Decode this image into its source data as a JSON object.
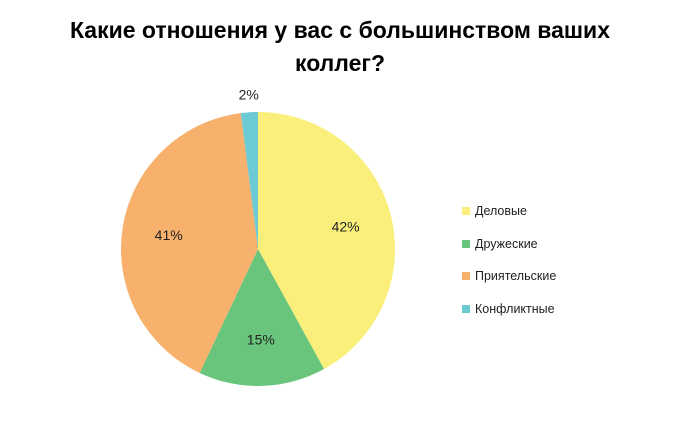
{
  "chart_data": {
    "type": "pie",
    "title": "Какие отношения у вас с большинством ваших коллег?",
    "categories": [
      "Деловые",
      "Дружеские",
      "Приятельские",
      "Конфликтные"
    ],
    "values": [
      42,
      15,
      41,
      2
    ],
    "data_labels": [
      "42%",
      "15%",
      "41%",
      "2%"
    ],
    "colors": [
      "#f9ef7a",
      "#69c57c",
      "#f8b06d",
      "#6ccad4"
    ],
    "legend_position": "right",
    "start_angle_deg": 0,
    "direction": "clockwise"
  }
}
